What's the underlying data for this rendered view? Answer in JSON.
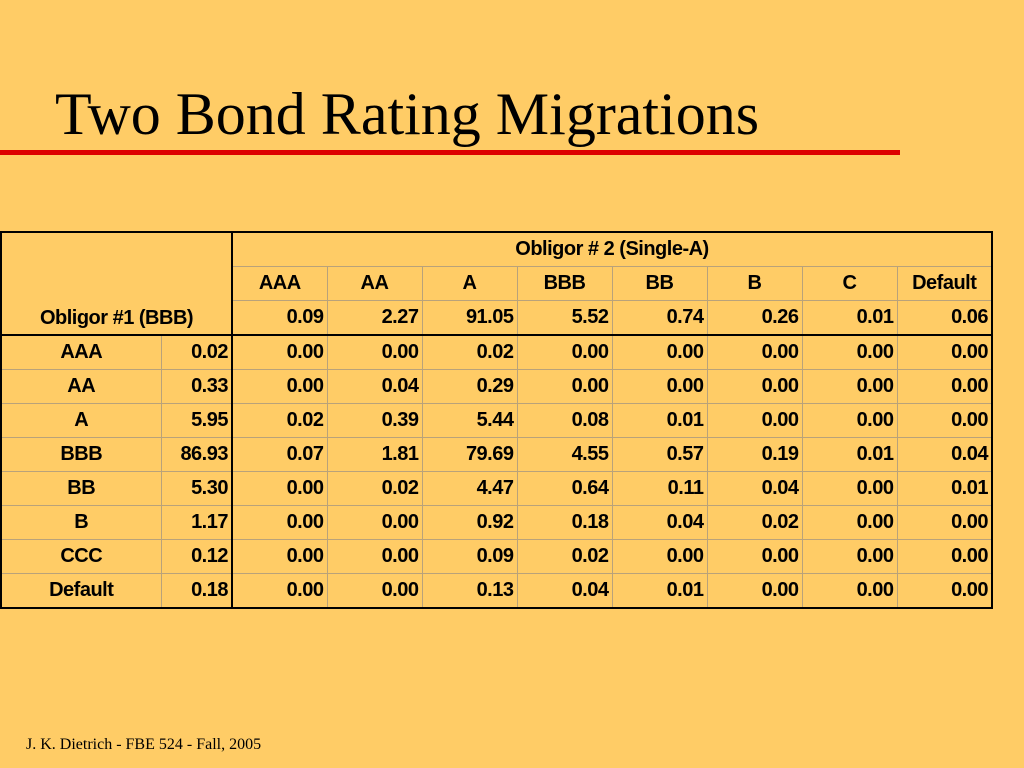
{
  "slide": {
    "title": "Two Bond Rating Migrations",
    "footer": "J. K. Dietrich - FBE 524 - Fall, 2005",
    "background_color": "#ffcc66",
    "rule_color": "#dd0000"
  },
  "table": {
    "corner_label": "Obligor #1 (BBB)",
    "col_group_label": "Obligor # 2 (Single-A)",
    "col_ratings": [
      "AAA",
      "AA",
      "A",
      "BBB",
      "BB",
      "B",
      "C",
      "Default"
    ],
    "col_probs": [
      "0.09",
      "2.27",
      "91.05",
      "5.52",
      "0.74",
      "0.26",
      "0.01",
      "0.06"
    ],
    "rows": [
      {
        "rating": "AAA",
        "prob": "0.02",
        "cells": [
          "0.00",
          "0.00",
          "0.02",
          "0.00",
          "0.00",
          "0.00",
          "0.00",
          "0.00"
        ]
      },
      {
        "rating": "AA",
        "prob": "0.33",
        "cells": [
          "0.00",
          "0.04",
          "0.29",
          "0.00",
          "0.00",
          "0.00",
          "0.00",
          "0.00"
        ]
      },
      {
        "rating": "A",
        "prob": "5.95",
        "cells": [
          "0.02",
          "0.39",
          "5.44",
          "0.08",
          "0.01",
          "0.00",
          "0.00",
          "0.00"
        ]
      },
      {
        "rating": "BBB",
        "prob": "86.93",
        "cells": [
          "0.07",
          "1.81",
          "79.69",
          "4.55",
          "0.57",
          "0.19",
          "0.01",
          "0.04"
        ]
      },
      {
        "rating": "BB",
        "prob": "5.30",
        "cells": [
          "0.00",
          "0.02",
          "4.47",
          "0.64",
          "0.11",
          "0.04",
          "0.00",
          "0.01"
        ]
      },
      {
        "rating": "B",
        "prob": "1.17",
        "cells": [
          "0.00",
          "0.00",
          "0.92",
          "0.18",
          "0.04",
          "0.02",
          "0.00",
          "0.00"
        ]
      },
      {
        "rating": "CCC",
        "prob": "0.12",
        "cells": [
          "0.00",
          "0.00",
          "0.09",
          "0.02",
          "0.00",
          "0.00",
          "0.00",
          "0.00"
        ]
      },
      {
        "rating": "Default",
        "prob": "0.18",
        "cells": [
          "0.00",
          "0.00",
          "0.13",
          "0.04",
          "0.01",
          "0.00",
          "0.00",
          "0.00"
        ]
      }
    ]
  }
}
